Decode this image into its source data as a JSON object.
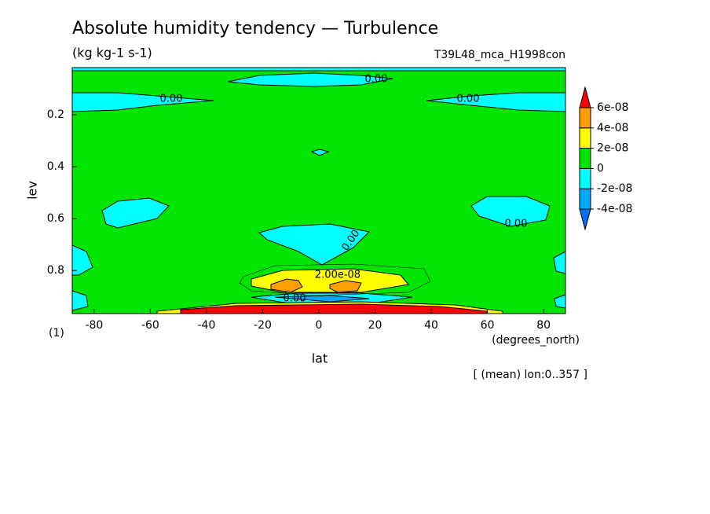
{
  "chart_data": {
    "type": "contour",
    "title": "Absolute humidity tendency — Turbulence",
    "subtitle": "(kg kg-1 s-1)",
    "run_label": "T39L48_mca_H1998con",
    "xlabel": "lat",
    "x_unit": "(degrees_north)",
    "ylabel": "lev",
    "corner_label": "(1)",
    "note": "[ (mean) lon:0..357 ]",
    "xlim": [
      -87.8,
      87.8
    ],
    "xticks": [
      -80,
      -60,
      -40,
      -20,
      0,
      20,
      40,
      60,
      80
    ],
    "ylim": [
      0.018,
      0.966
    ],
    "yticks": [
      0.2,
      0.4,
      0.6,
      0.8
    ],
    "colorbar": {
      "levels": [
        {
          "value": -4e-08,
          "label": "-4e-08"
        },
        {
          "value": -2e-08,
          "label": "-2e-08"
        },
        {
          "value": 0,
          "label": "0"
        },
        {
          "value": 2e-08,
          "label": "2e-08"
        },
        {
          "value": 4e-08,
          "label": "4e-08"
        },
        {
          "value": 6e-08,
          "label": "6e-08"
        }
      ],
      "colors": [
        "#0070ff",
        "#00a8ff",
        "#00ffff",
        "#00e600",
        "#ffff00",
        "#ffa000",
        "#ff0000"
      ]
    },
    "contour_labels": [
      "0.00",
      "0.00",
      "0.00",
      "0.00",
      "0.00",
      "0.00",
      "2.00e-08"
    ]
  }
}
